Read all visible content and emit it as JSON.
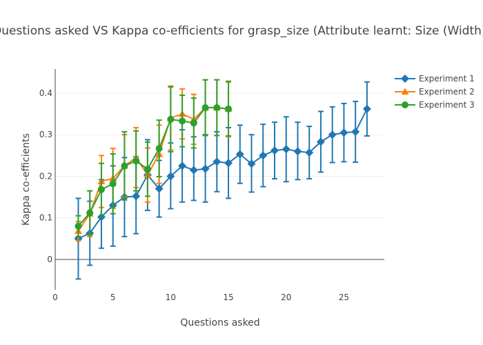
{
  "chart_data": {
    "type": "scatter",
    "title": "Questions asked VS Kappa co-efficients for grasp_size (Attribute learnt: Size (Width))",
    "xlabel": "Questions asked",
    "ylabel": "Kappa co-efficients",
    "xlim": [
      0,
      28.5
    ],
    "ylim": [
      -0.073,
      0.458
    ],
    "xticks": [
      0,
      5,
      10,
      15,
      20,
      25
    ],
    "yticks": [
      0,
      0.1,
      0.2,
      0.3,
      0.4
    ],
    "xtick_labels": [
      "0",
      "5",
      "10",
      "15",
      "20",
      "25"
    ],
    "ytick_labels": [
      "0",
      "0.1",
      "0.2",
      "0.3",
      "0.4"
    ],
    "grid": true,
    "legend_position": "top-right",
    "series": [
      {
        "name": "Experiment 1",
        "color": "#1f77b4",
        "marker": "diamond",
        "x": [
          2,
          3,
          4,
          5,
          6,
          7,
          8,
          9,
          10,
          11,
          12,
          13,
          14,
          15,
          16,
          17,
          18,
          19,
          20,
          21,
          22,
          23,
          24,
          25,
          26,
          27
        ],
        "y": [
          0.05,
          0.063,
          0.102,
          0.13,
          0.15,
          0.152,
          0.203,
          0.17,
          0.2,
          0.225,
          0.215,
          0.218,
          0.235,
          0.232,
          0.253,
          0.23,
          0.25,
          0.262,
          0.265,
          0.26,
          0.257,
          0.283,
          0.3,
          0.305,
          0.307,
          0.362
        ],
        "error_plus": [
          0.097,
          0.077,
          0.09,
          0.095,
          0.095,
          0.095,
          0.085,
          0.068,
          0.08,
          0.087,
          0.08,
          0.082,
          0.072,
          0.085,
          0.07,
          0.07,
          0.075,
          0.068,
          0.078,
          0.07,
          0.063,
          0.073,
          0.067,
          0.07,
          0.073,
          0.065
        ],
        "error_minus": [
          0.097,
          0.077,
          0.075,
          0.098,
          0.095,
          0.09,
          0.085,
          0.068,
          0.078,
          0.087,
          0.073,
          0.08,
          0.072,
          0.085,
          0.07,
          0.068,
          0.075,
          0.068,
          0.078,
          0.068,
          0.063,
          0.073,
          0.067,
          0.07,
          0.073,
          0.065
        ]
      },
      {
        "name": "Experiment 2",
        "color": "#ff7f0e",
        "marker": "triangle-up",
        "x": [
          2,
          3,
          4,
          5,
          6,
          7,
          8,
          9,
          10,
          11,
          12,
          13,
          14,
          15
        ],
        "y": [
          0.068,
          0.11,
          0.188,
          0.195,
          0.225,
          0.245,
          0.203,
          0.253,
          0.34,
          0.35,
          0.337,
          0.365,
          0.365,
          0.362
        ],
        "error_plus": [
          0.023,
          0.055,
          0.062,
          0.072,
          0.075,
          0.072,
          0.065,
          0.07,
          0.077,
          0.06,
          0.06,
          0.067,
          0.067,
          0.067
        ],
        "error_minus": [
          0.023,
          0.055,
          0.063,
          0.072,
          0.075,
          0.072,
          0.065,
          0.07,
          0.077,
          0.06,
          0.06,
          0.067,
          0.067,
          0.067
        ]
      },
      {
        "name": "Experiment 3",
        "color": "#2ca02c",
        "marker": "circle",
        "x": [
          2,
          3,
          4,
          5,
          6,
          7,
          8,
          9,
          10,
          11,
          12,
          13,
          14,
          15
        ],
        "y": [
          0.08,
          0.112,
          0.168,
          0.182,
          0.225,
          0.237,
          0.217,
          0.267,
          0.337,
          0.333,
          0.328,
          0.365,
          0.365,
          0.362
        ],
        "error_plus": [
          0.025,
          0.053,
          0.063,
          0.072,
          0.082,
          0.072,
          0.065,
          0.068,
          0.078,
          0.062,
          0.06,
          0.067,
          0.067,
          0.065
        ],
        "error_minus": [
          0.025,
          0.053,
          0.063,
          0.072,
          0.082,
          0.072,
          0.065,
          0.068,
          0.078,
          0.062,
          0.06,
          0.067,
          0.067,
          0.065
        ]
      }
    ]
  }
}
